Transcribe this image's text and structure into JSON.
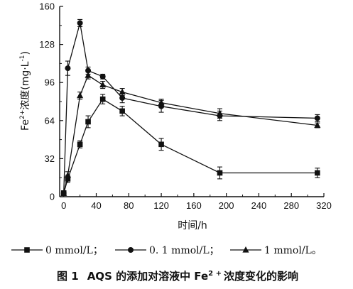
{
  "chart_data": {
    "type": "line",
    "x": [
      0,
      5,
      20,
      30,
      48,
      72,
      120,
      192,
      312
    ],
    "xlabel": "时间/h",
    "ylabel_parts": {
      "main": "Fe",
      "sup": "2+",
      "rest": "浓度(mg·L",
      "sup2": "-1",
      "close": ")"
    },
    "xlim": [
      -5,
      320
    ],
    "ylim": [
      0,
      160
    ],
    "xticks": [
      0,
      40,
      80,
      120,
      160,
      200,
      240,
      280,
      320
    ],
    "yticks": [
      0,
      32,
      64,
      96,
      128,
      160
    ],
    "grid": false,
    "legend_position": "bottom",
    "series": [
      {
        "name": "0 mmol/L",
        "legend_text": "0  mmol/L；",
        "marker": "square",
        "values": [
          3,
          15,
          44,
          63,
          82,
          72,
          44,
          20,
          20
        ],
        "errors": [
          2,
          3,
          3,
          5,
          4,
          4,
          5,
          5,
          4
        ]
      },
      {
        "name": "0. 1 mmol/L",
        "legend_text": "0. 1  mmol/L；",
        "marker": "circle",
        "values": [
          3,
          108,
          146,
          106,
          101,
          83,
          76,
          68,
          66
        ],
        "errors": [
          2,
          6,
          3,
          3,
          2,
          4,
          5,
          4,
          3
        ]
      },
      {
        "name": "1 mmol/L",
        "legend_text": "1  mmol/L。",
        "marker": "triangle",
        "values": [
          3,
          18,
          85,
          102,
          94,
          88,
          79,
          70,
          60
        ],
        "errors": [
          2,
          3,
          3,
          3,
          3,
          3,
          3,
          4,
          2
        ]
      }
    ]
  },
  "caption": {
    "label": "图 1",
    "text": "AQS 的添加对溶液中 Fe",
    "sup": "2 +",
    "tail": "浓度变化的影响"
  }
}
